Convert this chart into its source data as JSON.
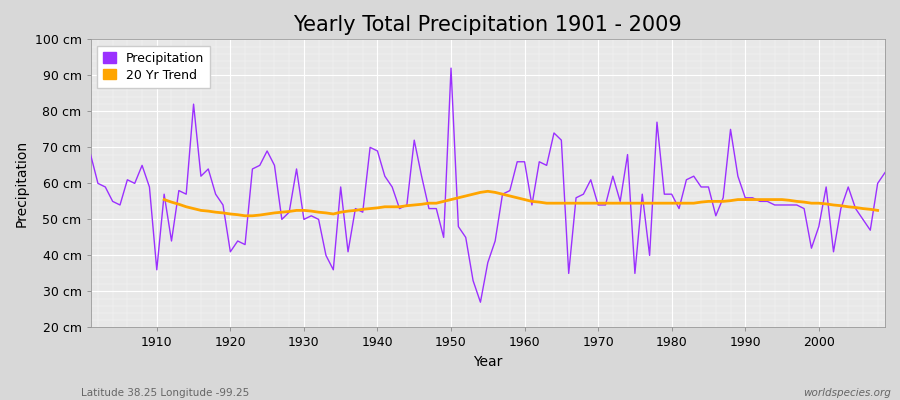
{
  "title": "Yearly Total Precipitation 1901 - 2009",
  "xlabel": "Year",
  "ylabel": "Precipitation",
  "bottom_left_label": "Latitude 38.25 Longitude -99.25",
  "bottom_right_label": "worldspecies.org",
  "ylim": [
    20,
    100
  ],
  "ytick_labels": [
    "20 cm",
    "30 cm",
    "40 cm",
    "50 cm",
    "60 cm",
    "70 cm",
    "80 cm",
    "90 cm",
    "100 cm"
  ],
  "ytick_values": [
    20,
    30,
    40,
    50,
    60,
    70,
    80,
    90,
    100
  ],
  "years": [
    1901,
    1902,
    1903,
    1904,
    1905,
    1906,
    1907,
    1908,
    1909,
    1910,
    1911,
    1912,
    1913,
    1914,
    1915,
    1916,
    1917,
    1918,
    1919,
    1920,
    1921,
    1922,
    1923,
    1924,
    1925,
    1926,
    1927,
    1928,
    1929,
    1930,
    1931,
    1932,
    1933,
    1934,
    1935,
    1936,
    1937,
    1938,
    1939,
    1940,
    1941,
    1942,
    1943,
    1944,
    1945,
    1946,
    1947,
    1948,
    1949,
    1950,
    1951,
    1952,
    1953,
    1954,
    1955,
    1956,
    1957,
    1958,
    1959,
    1960,
    1961,
    1962,
    1963,
    1964,
    1965,
    1966,
    1967,
    1968,
    1969,
    1970,
    1971,
    1972,
    1973,
    1974,
    1975,
    1976,
    1977,
    1978,
    1979,
    1980,
    1981,
    1982,
    1983,
    1984,
    1985,
    1986,
    1987,
    1988,
    1989,
    1990,
    1991,
    1992,
    1993,
    1994,
    1995,
    1996,
    1997,
    1998,
    1999,
    2000,
    2001,
    2002,
    2003,
    2004,
    2005,
    2006,
    2007,
    2008,
    2009
  ],
  "precipitation": [
    68,
    60,
    59,
    55,
    54,
    61,
    60,
    65,
    59,
    36,
    57,
    44,
    58,
    57,
    82,
    62,
    64,
    57,
    54,
    41,
    44,
    43,
    64,
    65,
    69,
    65,
    50,
    52,
    64,
    50,
    51,
    50,
    40,
    36,
    59,
    41,
    53,
    52,
    70,
    69,
    62,
    59,
    53,
    54,
    72,
    62,
    53,
    53,
    45,
    92,
    48,
    45,
    33,
    27,
    38,
    44,
    57,
    58,
    66,
    66,
    54,
    66,
    65,
    74,
    72,
    35,
    56,
    57,
    61,
    54,
    54,
    62,
    55,
    68,
    35,
    57,
    40,
    77,
    57,
    57,
    53,
    61,
    62,
    59,
    59,
    51,
    56,
    75,
    62,
    56,
    56,
    55,
    55,
    54,
    54,
    54,
    54,
    53,
    42,
    48,
    59,
    41,
    53,
    59,
    53,
    50,
    47,
    60,
    63
  ],
  "trend_years": [
    1911,
    1912,
    1913,
    1914,
    1915,
    1916,
    1917,
    1918,
    1919,
    1920,
    1921,
    1922,
    1923,
    1924,
    1925,
    1926,
    1927,
    1928,
    1929,
    1930,
    1931,
    1932,
    1933,
    1934,
    1935,
    1936,
    1937,
    1938,
    1939,
    1940,
    1941,
    1942,
    1943,
    1944,
    1945,
    1946,
    1947,
    1948,
    1949,
    1950,
    1951,
    1952,
    1953,
    1954,
    1955,
    1956,
    1957,
    1958,
    1959,
    1960,
    1961,
    1962,
    1963,
    1964,
    1965,
    1966,
    1967,
    1968,
    1969,
    1970,
    1971,
    1972,
    1973,
    1974,
    1975,
    1976,
    1977,
    1978,
    1979,
    1980,
    1981,
    1982,
    1983,
    1984,
    1985,
    1986,
    1987,
    1988,
    1989,
    1990,
    1991,
    1992,
    1993,
    1994,
    1995,
    1996,
    1997,
    1998,
    1999,
    2000,
    2001,
    2002,
    2003,
    2004,
    2005,
    2006,
    2007,
    2008
  ],
  "trend_vals": [
    55.5,
    54.8,
    54.2,
    53.5,
    53.0,
    52.5,
    52.3,
    52.0,
    51.8,
    51.5,
    51.3,
    51.0,
    51.0,
    51.2,
    51.5,
    51.8,
    52.0,
    52.2,
    52.5,
    52.5,
    52.3,
    52.0,
    51.8,
    51.5,
    52.0,
    52.3,
    52.5,
    52.8,
    53.0,
    53.2,
    53.5,
    53.5,
    53.5,
    53.8,
    54.0,
    54.2,
    54.5,
    54.5,
    55.0,
    55.5,
    56.0,
    56.5,
    57.0,
    57.5,
    57.8,
    57.5,
    57.0,
    56.5,
    56.0,
    55.5,
    55.0,
    54.8,
    54.5,
    54.5,
    54.5,
    54.5,
    54.5,
    54.5,
    54.5,
    54.5,
    54.5,
    54.5,
    54.5,
    54.5,
    54.5,
    54.5,
    54.5,
    54.5,
    54.5,
    54.5,
    54.5,
    54.5,
    54.5,
    54.8,
    55.0,
    55.0,
    55.0,
    55.2,
    55.5,
    55.5,
    55.5,
    55.5,
    55.5,
    55.5,
    55.5,
    55.3,
    55.0,
    54.8,
    54.5,
    54.5,
    54.3,
    54.0,
    53.8,
    53.5,
    53.3,
    53.0,
    52.8,
    52.5
  ],
  "precip_color": "#9B30FF",
  "trend_color": "#FFA500",
  "bg_color": "#D8D8D8",
  "plot_bg_color": "#E8E8E8",
  "grid_color": "#FFFFFF",
  "title_fontsize": 15,
  "label_fontsize": 10,
  "tick_fontsize": 9
}
